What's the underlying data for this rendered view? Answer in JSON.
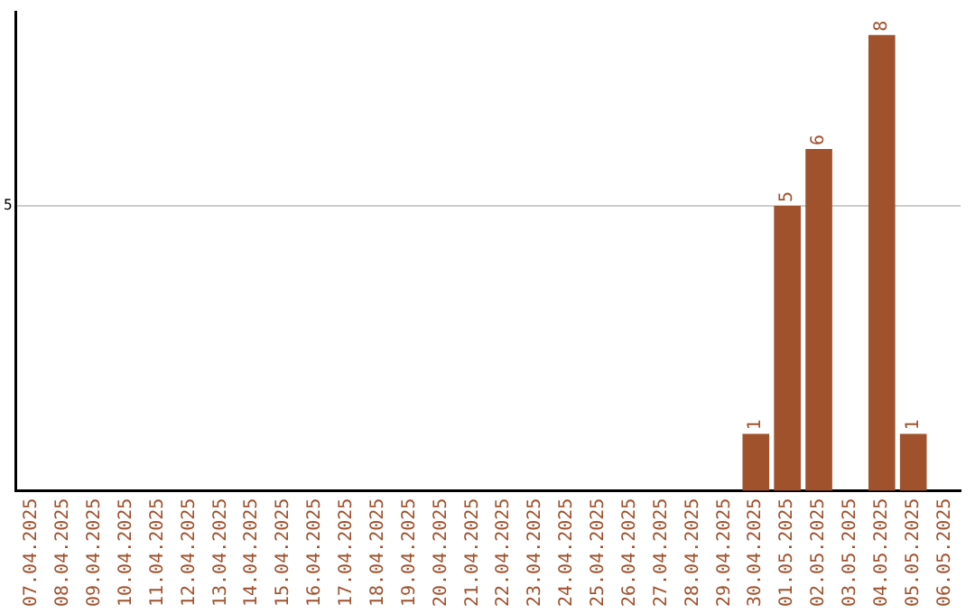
{
  "chart_data": {
    "type": "bar",
    "categories": [
      "07.04.2025",
      "08.04.2025",
      "09.04.2025",
      "10.04.2025",
      "11.04.2025",
      "12.04.2025",
      "13.04.2025",
      "14.04.2025",
      "15.04.2025",
      "16.04.2025",
      "17.04.2025",
      "18.04.2025",
      "19.04.2025",
      "20.04.2025",
      "21.04.2025",
      "22.04.2025",
      "23.04.2025",
      "24.04.2025",
      "25.04.2025",
      "26.04.2025",
      "27.04.2025",
      "28.04.2025",
      "29.04.2025",
      "30.04.2025",
      "01.05.2025",
      "02.05.2025",
      "03.05.2025",
      "04.05.2025",
      "05.05.2025",
      "06.05.2025"
    ],
    "values": [
      null,
      null,
      null,
      null,
      null,
      null,
      null,
      null,
      null,
      null,
      null,
      null,
      null,
      null,
      null,
      null,
      null,
      null,
      null,
      null,
      null,
      null,
      null,
      1,
      5,
      6,
      null,
      8,
      1,
      null
    ],
    "color": "#a0522d",
    "ylim": [
      0,
      8.4
    ],
    "yticks": [
      5
    ],
    "grid": "y",
    "data_labels": true,
    "legend": false
  }
}
